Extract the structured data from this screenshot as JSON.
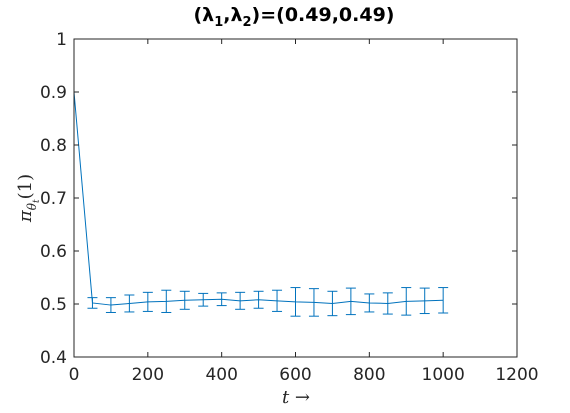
{
  "chart_data": {
    "type": "line",
    "title": "(λ1,λ2)=(0.49,0.49)",
    "title_parts": {
      "open": "(λ",
      "sub1": "1",
      "comma": ",λ",
      "sub2": "2",
      "close": ")=(0.49,0.49)"
    },
    "xlabel": "t →",
    "ylabel": {
      "base": "π",
      "sub": "θ",
      "subsub": "t",
      "arg": "(1)"
    },
    "xlim": [
      0,
      1200
    ],
    "ylim": [
      0.4,
      1
    ],
    "xticks": [
      0,
      200,
      400,
      600,
      800,
      1000,
      1200
    ],
    "xtick_labels": [
      "0",
      "200",
      "400",
      "600",
      "800",
      "1000",
      "1200"
    ],
    "yticks": [
      0.4,
      0.5,
      0.6,
      0.7,
      0.8,
      0.9,
      1
    ],
    "ytick_labels": [
      "0.4",
      "0.5",
      "0.6",
      "0.7",
      "0.8",
      "0.9",
      "1"
    ],
    "grid": false,
    "series": [
      {
        "color": "#0072bd",
        "x": [
          0,
          50,
          100,
          150,
          200,
          250,
          300,
          350,
          400,
          450,
          500,
          550,
          600,
          650,
          700,
          750,
          800,
          850,
          900,
          950,
          1000
        ],
        "y": [
          0.9,
          0.502,
          0.498,
          0.501,
          0.504,
          0.505,
          0.507,
          0.508,
          0.509,
          0.506,
          0.508,
          0.506,
          0.504,
          0.503,
          0.501,
          0.505,
          0.502,
          0.501,
          0.505,
          0.506,
          0.507
        ],
        "error": [
          0,
          0.01,
          0.014,
          0.016,
          0.018,
          0.021,
          0.017,
          0.012,
          0.012,
          0.016,
          0.016,
          0.02,
          0.027,
          0.026,
          0.023,
          0.025,
          0.017,
          0.02,
          0.026,
          0.024,
          0.024
        ]
      }
    ]
  }
}
